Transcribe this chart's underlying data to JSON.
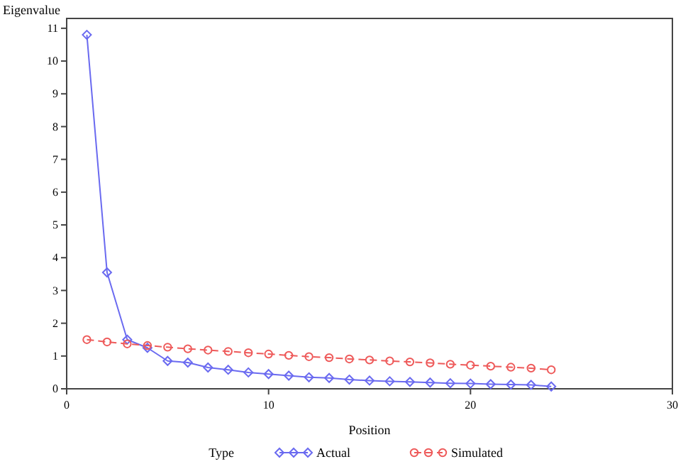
{
  "chart_data": {
    "type": "line",
    "ylabel": "Eigenvalue",
    "xlabel": "Position",
    "legend_title": "Type",
    "legend": "bottom",
    "grid": false,
    "x": [
      1,
      2,
      3,
      4,
      5,
      6,
      7,
      8,
      9,
      10,
      11,
      12,
      13,
      14,
      15,
      16,
      17,
      18,
      19,
      20,
      21,
      22,
      23,
      24
    ],
    "xlim": [
      0,
      30
    ],
    "xticks": [
      0,
      10,
      20,
      30
    ],
    "ylim": [
      0,
      11.3
    ],
    "yticks": [
      0,
      1,
      2,
      3,
      4,
      5,
      6,
      7,
      8,
      9,
      10,
      11
    ],
    "series": [
      {
        "name": "Actual",
        "color": "#6a6af0",
        "marker": "diamond",
        "line_style": "solid",
        "values": [
          10.8,
          3.55,
          1.5,
          1.25,
          0.85,
          0.8,
          0.65,
          0.58,
          0.5,
          0.45,
          0.4,
          0.35,
          0.33,
          0.28,
          0.25,
          0.23,
          0.21,
          0.19,
          0.17,
          0.16,
          0.14,
          0.13,
          0.12,
          0.07
        ]
      },
      {
        "name": "Simulated",
        "color": "#ee5a5a",
        "marker": "circle",
        "line_style": "dashed",
        "values": [
          1.5,
          1.43,
          1.37,
          1.32,
          1.27,
          1.22,
          1.18,
          1.14,
          1.1,
          1.06,
          1.02,
          0.98,
          0.95,
          0.91,
          0.88,
          0.85,
          0.82,
          0.79,
          0.75,
          0.72,
          0.69,
          0.66,
          0.63,
          0.58
        ]
      }
    ]
  }
}
